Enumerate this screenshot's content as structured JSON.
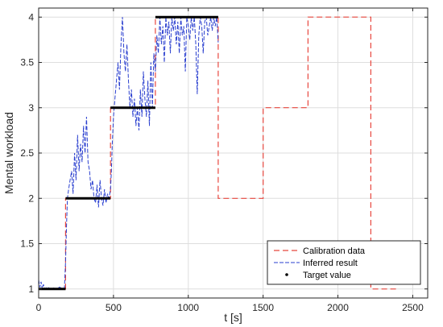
{
  "chart_data": {
    "type": "line",
    "title": "",
    "xlabel": "t [s]",
    "ylabel": "Mental workload",
    "xlim": [
      0,
      2600
    ],
    "ylim": [
      0.9,
      4.1
    ],
    "xticks": [
      0,
      500,
      1000,
      1500,
      2000,
      2500
    ],
    "yticks": [
      1,
      1.5,
      2,
      2.5,
      3,
      3.5,
      4
    ],
    "xtick_labels": [
      "0",
      "500",
      "1000",
      "1500",
      "2000",
      "2500"
    ],
    "ytick_labels": [
      "1",
      "1.5",
      "2",
      "2.5",
      "3",
      "3.5",
      "4"
    ],
    "grid": true,
    "legend_position": "bottom-right",
    "legend": [
      "Calibration data",
      "Inferred result",
      "Target value"
    ],
    "series": [
      {
        "name": "Calibration data",
        "style": "dashed",
        "color": "#e8473f",
        "x": [
          0,
          180,
          180,
          480,
          480,
          780,
          780,
          1200,
          1200,
          1500,
          1500,
          1800,
          1800,
          2220,
          2220,
          2400
        ],
        "y": [
          1,
          1,
          2,
          2,
          3,
          3,
          4,
          4,
          2,
          2,
          3,
          3,
          4,
          4,
          1,
          1
        ]
      },
      {
        "name": "Inferred result",
        "style": "dashed",
        "color": "#2a3fcf",
        "x": [
          0,
          8,
          16,
          24,
          32,
          40,
          60,
          80,
          100,
          120,
          140,
          160,
          172,
          180,
          186,
          192,
          200,
          210,
          220,
          230,
          240,
          250,
          260,
          270,
          280,
          290,
          300,
          310,
          320,
          330,
          340,
          350,
          360,
          370,
          380,
          390,
          400,
          410,
          420,
          430,
          440,
          450,
          460,
          470,
          480,
          486,
          492,
          500,
          510,
          520,
          530,
          540,
          550,
          560,
          570,
          580,
          590,
          600,
          610,
          620,
          630,
          640,
          650,
          660,
          670,
          680,
          690,
          700,
          710,
          720,
          730,
          740,
          750,
          760,
          770,
          780,
          790,
          800,
          810,
          820,
          830,
          840,
          850,
          860,
          870,
          880,
          890,
          900,
          910,
          920,
          930,
          940,
          950,
          960,
          970,
          980,
          990,
          1000,
          1010,
          1020,
          1030,
          1040,
          1050,
          1060,
          1070,
          1080,
          1090,
          1100,
          1110,
          1120,
          1130,
          1140,
          1150,
          1160,
          1170,
          1180,
          1190,
          1200
        ],
        "y": [
          1.1,
          1.02,
          1.08,
          1.0,
          1.05,
          1.0,
          1.02,
          1.0,
          1.01,
          1.0,
          1.02,
          1.0,
          1.01,
          1.3,
          1.7,
          2.0,
          2.1,
          2.2,
          2.3,
          2.05,
          2.5,
          2.2,
          2.7,
          2.3,
          2.6,
          2.4,
          2.8,
          2.5,
          2.9,
          2.4,
          2.3,
          2.1,
          2.2,
          2.0,
          1.95,
          2.15,
          1.9,
          2.2,
          2.0,
          1.92,
          2.1,
          1.95,
          2.05,
          2.0,
          2.1,
          2.3,
          2.6,
          2.9,
          3.1,
          3.3,
          3.5,
          3.2,
          3.7,
          4.0,
          3.6,
          3.4,
          3.7,
          3.3,
          3.0,
          3.2,
          2.9,
          3.1,
          2.8,
          3.0,
          2.75,
          3.2,
          2.9,
          3.4,
          3.1,
          2.9,
          3.3,
          2.8,
          3.5,
          3.0,
          3.6,
          3.4,
          3.8,
          3.6,
          4.0,
          3.7,
          3.9,
          3.5,
          4.0,
          3.8,
          3.95,
          3.6,
          4.0,
          3.85,
          4.0,
          3.7,
          3.95,
          3.6,
          4.0,
          3.8,
          3.9,
          3.4,
          4.0,
          3.9,
          3.75,
          4.0,
          3.85,
          4.0,
          3.7,
          3.15,
          3.8,
          4.0,
          3.9,
          3.6,
          3.95,
          4.0,
          3.8,
          3.9,
          4.0,
          3.85,
          4.0,
          3.9,
          4.0,
          3.72
        ]
      },
      {
        "name": "Target value",
        "style": "solid",
        "color": "#000000",
        "segments": [
          {
            "x": [
              0,
              180
            ],
            "y": 1
          },
          {
            "x": [
              180,
              480
            ],
            "y": 2
          },
          {
            "x": [
              480,
              780
            ],
            "y": 3
          },
          {
            "x": [
              780,
              1200
            ],
            "y": 4
          }
        ]
      }
    ]
  }
}
